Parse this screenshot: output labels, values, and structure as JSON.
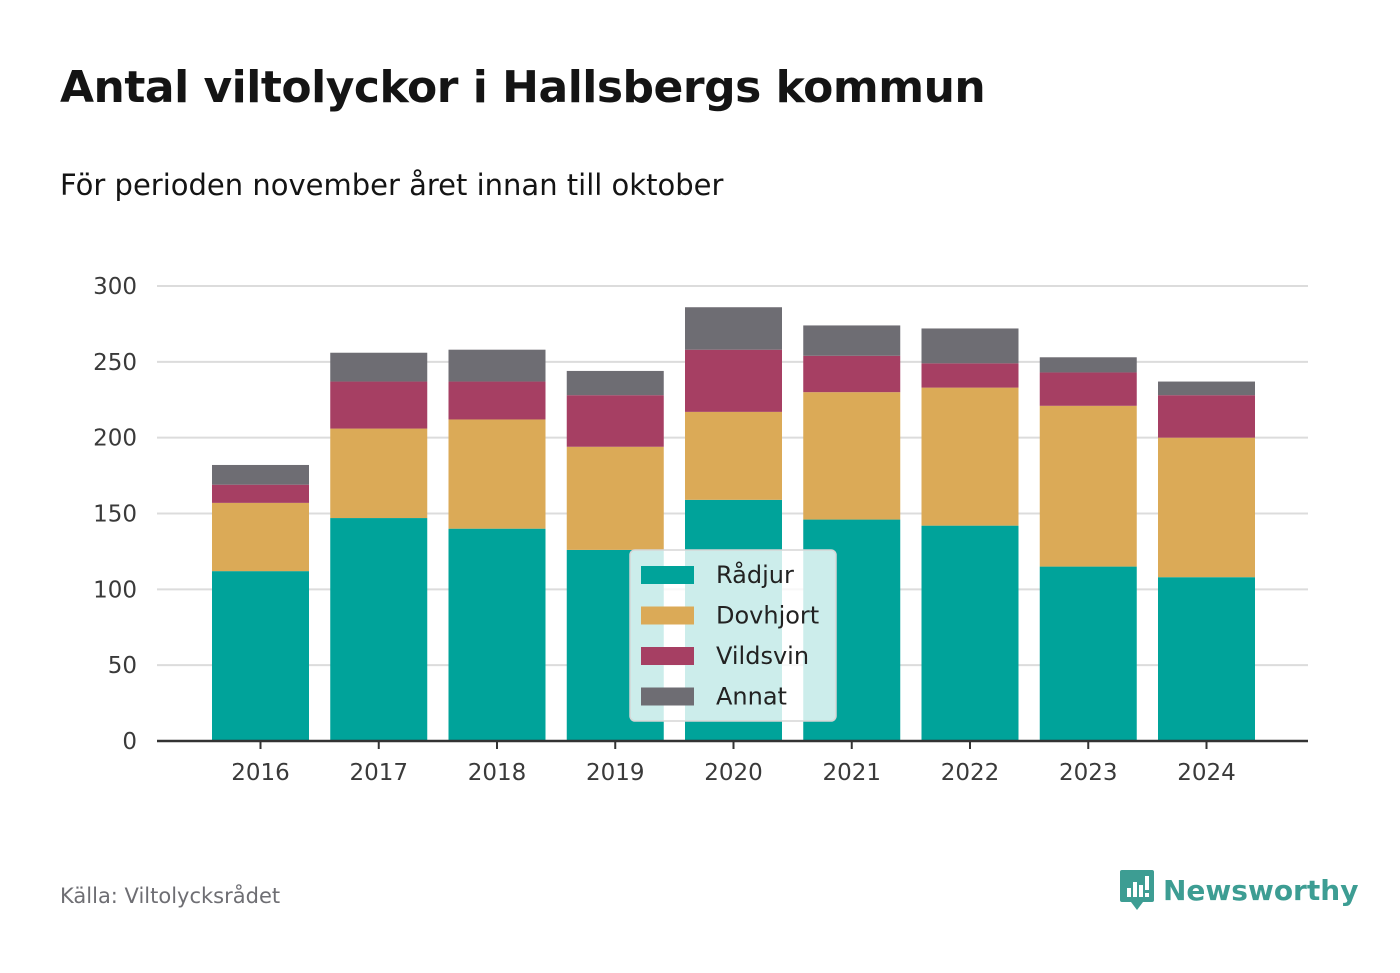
{
  "title": "Antal viltolyckor i Hallsbergs kommun",
  "subtitle": "För perioden november året innan till oktober",
  "source": "Källa: Viltolycksrådet",
  "brand": {
    "name": "Newsworthy",
    "icon": "newsworthy-logo-icon",
    "color": "#3d9d93"
  },
  "chart_data": {
    "type": "bar",
    "stacked": true,
    "categories": [
      "2016",
      "2017",
      "2018",
      "2019",
      "2020",
      "2021",
      "2022",
      "2023",
      "2024"
    ],
    "series": [
      {
        "name": "Rådjur",
        "color": "#00a39a",
        "values": [
          112,
          147,
          140,
          126,
          159,
          146,
          142,
          115,
          108
        ]
      },
      {
        "name": "Dovhjort",
        "color": "#dbaa57",
        "values": [
          45,
          59,
          72,
          68,
          58,
          84,
          91,
          106,
          92
        ]
      },
      {
        "name": "Vildsvin",
        "color": "#a63f63",
        "values": [
          12,
          31,
          25,
          34,
          41,
          24,
          16,
          22,
          28
        ]
      },
      {
        "name": "Annat",
        "color": "#6e6d73",
        "values": [
          13,
          19,
          21,
          16,
          28,
          20,
          23,
          10,
          9
        ]
      }
    ],
    "ylim": [
      0,
      300
    ],
    "yticks": [
      0,
      50,
      100,
      150,
      200,
      250,
      300
    ],
    "xlabel": "",
    "ylabel": "",
    "grid": true,
    "legend": {
      "position": "center-bottom",
      "entries": [
        "Rådjur",
        "Dovhjort",
        "Vildsvin",
        "Annat"
      ]
    }
  }
}
